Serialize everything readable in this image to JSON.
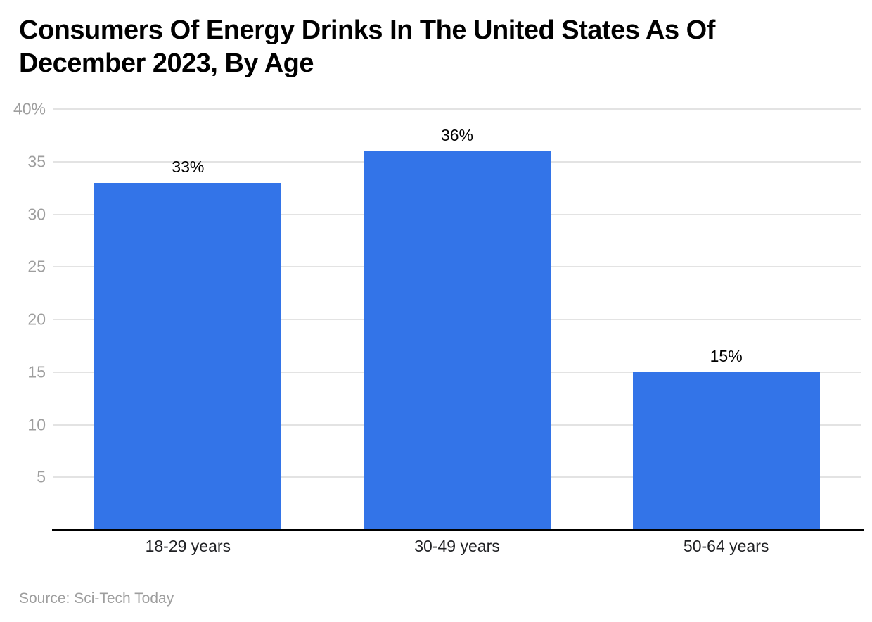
{
  "page": {
    "title": "Consumers Of Energy Drinks In The United States As Of December 2023, By Age",
    "source": "Source: Sci-Tech Today"
  },
  "chart_data": {
    "type": "bar",
    "title": "Consumers Of Energy Drinks In The United States As Of December 2023, By Age",
    "categories": [
      "18-29 years",
      "30-49 years",
      "50-64 years"
    ],
    "values": [
      33,
      36,
      15
    ],
    "data_labels": [
      "33%",
      "36%",
      "15%"
    ],
    "xlabel": "",
    "ylabel": "",
    "ylim": [
      0,
      40
    ],
    "yticks": [
      5,
      10,
      15,
      20,
      25,
      30,
      35,
      40
    ],
    "ytick_labels": [
      "5",
      "10",
      "15",
      "20",
      "25",
      "30",
      "35",
      "40%"
    ],
    "grid": true,
    "legend_position": "none",
    "source": "Source: Sci-Tech Today",
    "colors": {
      "bar": "#3374e8",
      "gridline": "#e3e3e3",
      "axis_line": "#000000",
      "ytick_label": "#9e9e9e",
      "xtick_label": "#202124",
      "data_label": "#000000",
      "title": "#000000",
      "source": "#9e9e9e",
      "background": "#ffffff"
    }
  }
}
